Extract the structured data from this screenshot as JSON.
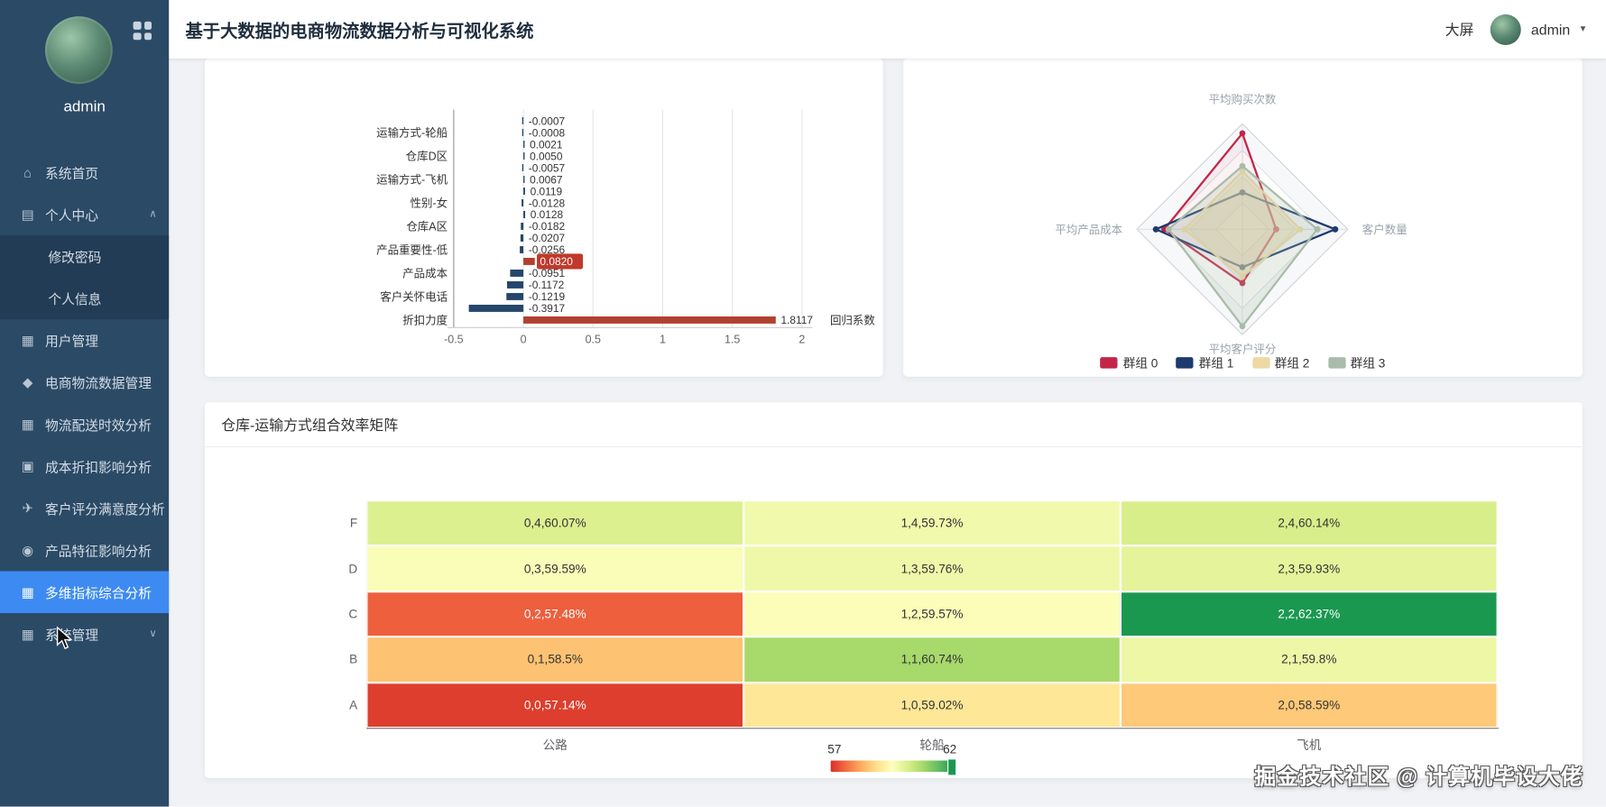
{
  "header": {
    "title": "基于大数据的电商物流数据分析与可视化系统",
    "big_screen_label": "大屏",
    "username": "admin"
  },
  "sidebar": {
    "username": "admin",
    "items": [
      {
        "label": "系统首页",
        "icon": "home-icon"
      },
      {
        "label": "个人中心",
        "icon": "list-icon",
        "expanded": true,
        "children": [
          {
            "label": "修改密码"
          },
          {
            "label": "个人信息"
          }
        ]
      },
      {
        "label": "用户管理",
        "icon": "grid-icon"
      },
      {
        "label": "电商物流数据管理",
        "icon": "shield-icon"
      },
      {
        "label": "物流配送时效分析",
        "icon": "grid-icon"
      },
      {
        "label": "成本折扣影响分析",
        "icon": "monitor-icon"
      },
      {
        "label": "客户评分满意度分析",
        "icon": "plane-icon"
      },
      {
        "label": "产品特征影响分析",
        "icon": "bulb-icon"
      },
      {
        "label": "多维指标综合分析",
        "icon": "grid-icon",
        "active": true
      },
      {
        "label": "系统管理",
        "icon": "grid-icon",
        "collapsible": true,
        "collapsed": true
      }
    ]
  },
  "watermark": {
    "text": "掘金技术社区 @ 计算机毕设大佬"
  },
  "chart_data": [
    {
      "type": "bar",
      "orientation": "horizontal",
      "series_name": "回归系数",
      "xlim": [
        -0.5,
        2
      ],
      "x_ticks": [
        -0.5,
        0,
        0.5,
        1,
        1.5,
        2
      ],
      "colors": {
        "default": "#25466b",
        "highlight": "#b1402f",
        "badge": "#c0392b"
      },
      "bars": [
        {
          "label": "",
          "value": -0.0007,
          "text": "-0.0007"
        },
        {
          "label": "运输方式-轮船",
          "value": -0.0008,
          "text": "-0.0008"
        },
        {
          "label": "",
          "value": 0.0021,
          "text": "0.0021"
        },
        {
          "label": "仓库D区",
          "value": 0.005,
          "text": "0.0050"
        },
        {
          "label": "",
          "value": -0.0057,
          "text": "-0.0057"
        },
        {
          "label": "运输方式-飞机",
          "value": 0.0067,
          "text": "0.0067"
        },
        {
          "label": "",
          "value": 0.0119,
          "text": "0.0119"
        },
        {
          "label": "性别-女",
          "value": -0.0128,
          "text": "-0.0128"
        },
        {
          "label": "",
          "value": 0.0128,
          "text": "0.0128"
        },
        {
          "label": "仓库A区",
          "value": -0.0182,
          "text": "-0.0182"
        },
        {
          "label": "",
          "value": -0.0207,
          "text": "-0.0207"
        },
        {
          "label": "产品重要性-低",
          "value": -0.0256,
          "text": "-0.0256"
        },
        {
          "label": "",
          "value": 0.082,
          "text": "0.0820",
          "highlight": true,
          "badge": true
        },
        {
          "label": "产品成本",
          "value": -0.0951,
          "text": "-0.0951"
        },
        {
          "label": "",
          "value": -0.1172,
          "text": "-0.1172"
        },
        {
          "label": "客户关怀电话",
          "value": -0.1219,
          "text": "-0.1219"
        },
        {
          "label": "",
          "value": -0.3917,
          "text": "-0.3917"
        },
        {
          "label": "折扣力度",
          "value": 1.8117,
          "text": "1.8117",
          "highlight": true
        }
      ]
    },
    {
      "type": "radar",
      "indicators": [
        "平均购买次数",
        "客户数量",
        "平均客户评分",
        "平均产品成本"
      ],
      "scale": "normalized 0-1",
      "series": [
        {
          "name": "群组 0",
          "color": "#c32548",
          "values": [
            0.91,
            0.32,
            0.51,
            0.74
          ]
        },
        {
          "name": "群组 1",
          "color": "#1d3a6e",
          "values": [
            0.35,
            0.88,
            0.36,
            0.82
          ]
        },
        {
          "name": "群组 2",
          "color": "#ecd9a4",
          "values": [
            0.55,
            0.55,
            0.45,
            0.55
          ]
        },
        {
          "name": "群组 3",
          "color": "#a9bca9",
          "values": [
            0.6,
            0.71,
            0.92,
            0.7
          ]
        }
      ],
      "legend_position": "bottom"
    },
    {
      "type": "heatmap",
      "title": "仓库-运输方式组合效率矩阵",
      "columns": [
        "公路",
        "轮船",
        "飞机"
      ],
      "rows": [
        "F",
        "D",
        "C",
        "B",
        "A"
      ],
      "colormap": {
        "min": 57,
        "max": 62
      },
      "cells": [
        [
          {
            "text": "0,4,60.07%",
            "value": 60.07
          },
          {
            "text": "1,4,59.73%",
            "value": 59.73
          },
          {
            "text": "2,4,60.14%",
            "value": 60.14
          }
        ],
        [
          {
            "text": "0,3,59.59%",
            "value": 59.59
          },
          {
            "text": "1,3,59.76%",
            "value": 59.76
          },
          {
            "text": "2,3,59.93%",
            "value": 59.93
          }
        ],
        [
          {
            "text": "0,2,57.48%",
            "value": 57.48
          },
          {
            "text": "1,2,59.57%",
            "value": 59.57
          },
          {
            "text": "2,2,62.37%",
            "value": 62.37
          }
        ],
        [
          {
            "text": "0,1,58.5%",
            "value": 58.5
          },
          {
            "text": "1,1,60.74%",
            "value": 60.74
          },
          {
            "text": "2,1,59.8%",
            "value": 59.8
          }
        ],
        [
          {
            "text": "0,0,57.14%",
            "value": 57.14
          },
          {
            "text": "1,0,59.02%",
            "value": 59.02
          },
          {
            "text": "2,0,58.59%",
            "value": 58.59
          }
        ]
      ]
    }
  ]
}
